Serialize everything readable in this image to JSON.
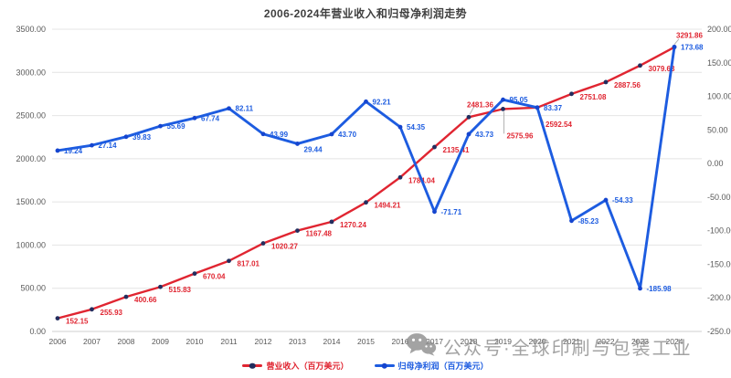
{
  "title": "2006-2024年营业收入和归母净利润走势",
  "legend": {
    "items": [
      {
        "label": "营业收入（百万美元）",
        "color": "#e02531",
        "marker_color": "#232d5e"
      },
      {
        "label": "归母净利润（百万美元）",
        "color": "#1d5ce0",
        "marker_color": "#1545cf"
      }
    ]
  },
  "watermark": {
    "icon": "wechat-icon",
    "text": "公众号·全球印刷与包装工业"
  },
  "chart_data": {
    "type": "line",
    "title": "2006-2024年营业收入和归母净利润走势",
    "categories": [
      "2006",
      "2007",
      "2008",
      "2009",
      "2010",
      "2011",
      "2012",
      "2013",
      "2014",
      "2015",
      "2016",
      "2017",
      "2018",
      "2019",
      "2020",
      "2021",
      "2022",
      "2023",
      "2024"
    ],
    "series": [
      {
        "name": "营业收入（百万美元）",
        "yaxis": "left",
        "color": "#e02531",
        "marker_color": "#232d5e",
        "values": [
          152.15,
          255.93,
          400.66,
          515.83,
          670.04,
          817.01,
          1020.27,
          1167.48,
          1270.24,
          1494.21,
          1784.04,
          2135.41,
          2481.36,
          2575.96,
          2592.54,
          2751.08,
          2887.56,
          3079.63,
          3291.86
        ]
      },
      {
        "name": "归母净利润（百万美元）",
        "yaxis": "right",
        "color": "#1d5ce0",
        "marker_color": "#1545cf",
        "values": [
          19.24,
          27.14,
          39.83,
          55.69,
          67.74,
          82.11,
          43.99,
          29.44,
          43.7,
          92.21,
          54.35,
          -71.71,
          43.73,
          95.05,
          83.37,
          -85.23,
          -54.33,
          -185.98,
          173.68
        ]
      }
    ],
    "left_axis": {
      "min": 0,
      "max": 3500,
      "step": 500,
      "format": "0.00"
    },
    "right_axis": {
      "min": -250,
      "max": 200,
      "step": 50,
      "format": "0.00"
    },
    "grid": true,
    "legend_position": "bottom",
    "grid_color": "#e4e4e4",
    "axis_line_color": "#cfcfcf",
    "axis_text_color": "#595959",
    "leader_color": "#b3b3b3"
  }
}
